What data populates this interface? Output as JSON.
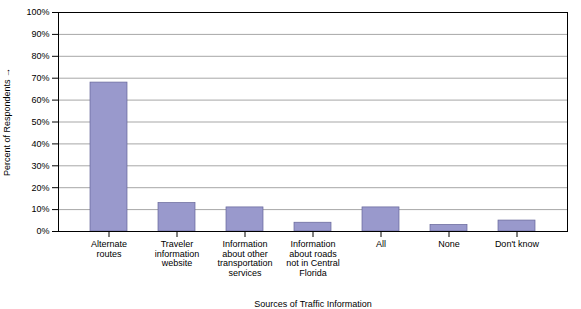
{
  "chart_data": {
    "type": "bar",
    "categories": [
      "Alternate\nroutes",
      "Traveler\ninformation\nwebsite",
      "Information\nabout other\ntransportation\nservices",
      "Information\nabout roads\nnot in Central\nFlorida",
      "All",
      "None",
      "Don't know"
    ],
    "values": [
      68,
      13,
      11,
      4,
      11,
      3,
      5
    ],
    "color": "#9999cc",
    "xlabel": "Sources of Traffic Information",
    "ylabel": "Percent of Respondents",
    "ylim": [
      0,
      100
    ],
    "yticks": [
      {
        "value": 0,
        "label": "0%"
      },
      {
        "value": 10,
        "label": "10%"
      },
      {
        "value": 20,
        "label": "20%"
      },
      {
        "value": 30,
        "label": "30%"
      },
      {
        "value": 40,
        "label": "40%"
      },
      {
        "value": 50,
        "label": "50%"
      },
      {
        "value": 60,
        "label": "60%"
      },
      {
        "value": 70,
        "label": "70%"
      },
      {
        "value": 80,
        "label": "80%"
      },
      {
        "value": 90,
        "label": "90%"
      },
      {
        "value": 100,
        "label": "100%"
      }
    ],
    "grid": true
  }
}
